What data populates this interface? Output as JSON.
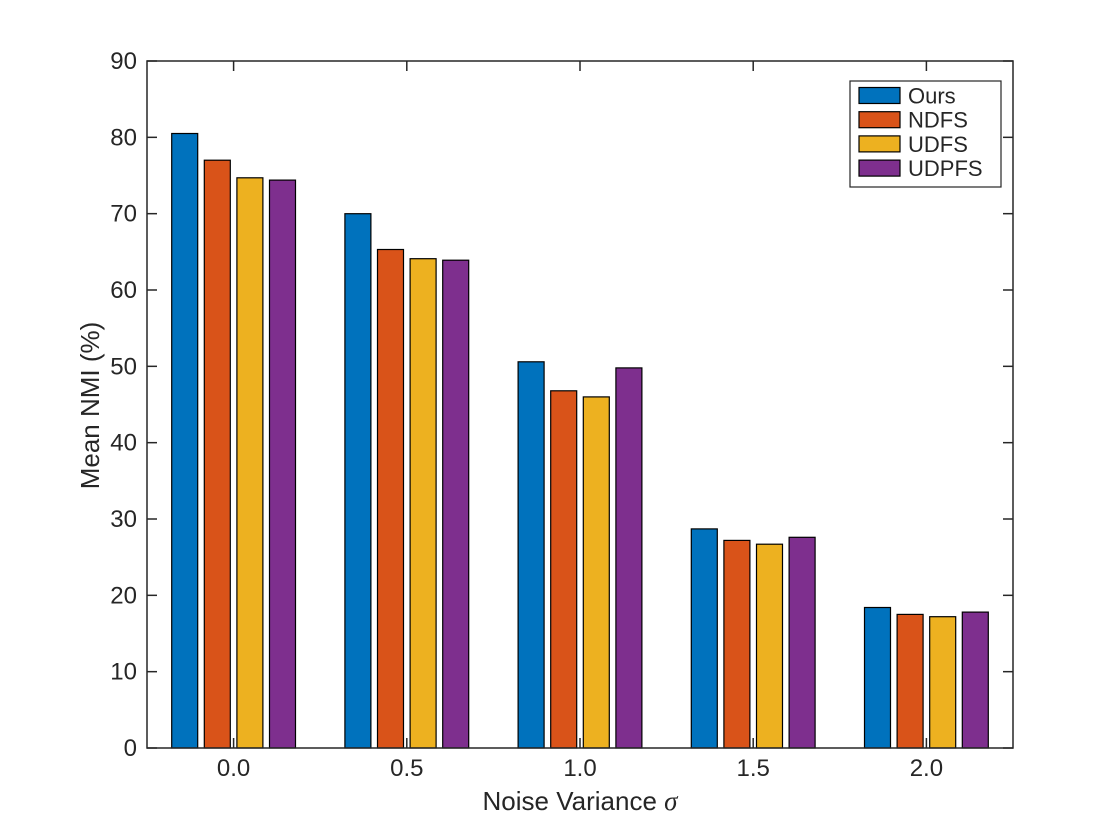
{
  "chart_data": {
    "type": "bar",
    "title": "",
    "xlabel": "Noise Variance",
    "xlabel_symbol": "σ",
    "ylabel": "Mean NMI (%)",
    "categories": [
      "0.0",
      "0.5",
      "1.0",
      "1.5",
      "2.0"
    ],
    "series": [
      {
        "name": "Ours",
        "color": "#0072BD",
        "values": [
          80.5,
          70.0,
          50.6,
          28.7,
          18.4
        ]
      },
      {
        "name": "NDFS",
        "color": "#D95319",
        "values": [
          77.0,
          65.3,
          46.8,
          27.2,
          17.5
        ]
      },
      {
        "name": "UDFS",
        "color": "#EDB120",
        "values": [
          74.7,
          64.1,
          46.0,
          26.7,
          17.2
        ]
      },
      {
        "name": "UDPFS",
        "color": "#7E2F8E",
        "values": [
          74.4,
          63.9,
          49.8,
          27.6,
          17.8
        ]
      }
    ],
    "ylim": [
      0,
      90
    ],
    "ytick_step": 10,
    "yticks": [
      "0",
      "10",
      "20",
      "30",
      "40",
      "50",
      "60",
      "70",
      "80",
      "90"
    ],
    "grid": false,
    "legend_position": "top-right",
    "legend_entries": [
      "Ours",
      "NDFS",
      "UDFS",
      "UDPFS"
    ],
    "bar_edge_color": "#000000",
    "axis_color": "#262626",
    "background": "#ffffff"
  }
}
